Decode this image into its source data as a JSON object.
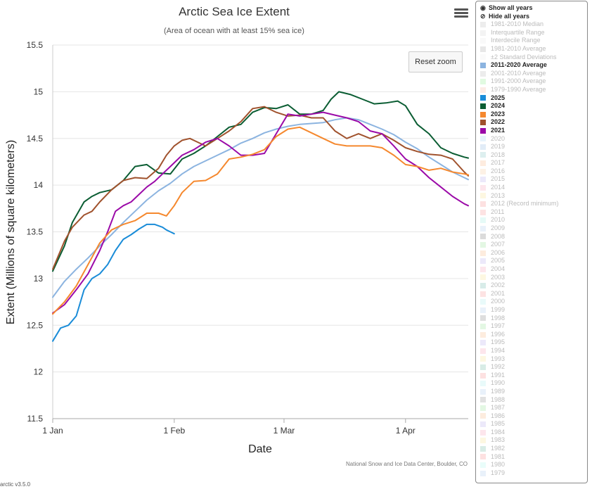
{
  "chart_data": {
    "type": "line",
    "title": "Arctic Sea Ice Extent",
    "subtitle": "(Area of ocean with at least 15% sea ice)",
    "xlabel": "Date",
    "ylabel": "Extent (Millions of square kilometers)",
    "xlim": [
      1,
      107
    ],
    "ylim": [
      11.5,
      15.5
    ],
    "x_ticks": [
      {
        "label": "1 Jan",
        "x": 1
      },
      {
        "label": "1 Feb",
        "x": 32
      },
      {
        "label": "1 Mar",
        "x": 60
      },
      {
        "label": "1 Apr",
        "x": 91
      }
    ],
    "y_ticks": [
      {
        "label": "11.5",
        "v": 11.5
      },
      {
        "label": "12",
        "v": 12
      },
      {
        "label": "12.5",
        "v": 12.5
      },
      {
        "label": "13",
        "v": 13
      },
      {
        "label": "13.5",
        "v": 13.5
      },
      {
        "label": "14",
        "v": 14
      },
      {
        "label": "14.5",
        "v": 14.5
      },
      {
        "label": "15",
        "v": 15
      },
      {
        "label": "15.5",
        "v": 15.5
      }
    ],
    "grid": "horizontal",
    "legend_position": "right",
    "series": [
      {
        "name": "2011-2020 Average",
        "color": "#8cb4e0",
        "x": [
          1,
          4,
          7,
          10,
          13,
          16,
          19,
          22,
          25,
          28,
          31,
          34,
          37,
          40,
          43,
          46,
          49,
          52,
          55,
          58,
          61,
          64,
          67,
          70,
          73,
          76,
          79,
          82,
          85,
          88,
          91,
          94,
          97,
          100,
          103,
          106,
          107
        ],
        "y": [
          12.8,
          12.97,
          13.1,
          13.22,
          13.35,
          13.47,
          13.6,
          13.72,
          13.84,
          13.94,
          14.02,
          14.12,
          14.2,
          14.26,
          14.32,
          14.38,
          14.45,
          14.5,
          14.56,
          14.6,
          14.63,
          14.65,
          14.66,
          14.67,
          14.7,
          14.72,
          14.7,
          14.65,
          14.6,
          14.54,
          14.46,
          14.39,
          14.3,
          14.22,
          14.14,
          14.08,
          14.06
        ]
      },
      {
        "name": "2024",
        "color": "#0b5d33",
        "x": [
          1,
          4,
          6,
          9,
          11,
          13,
          16,
          19,
          22,
          25,
          28,
          31,
          34,
          37,
          40,
          43,
          46,
          49,
          52,
          55,
          58,
          61,
          64,
          67,
          70,
          72,
          74,
          77,
          80,
          83,
          86,
          89,
          91,
          94,
          97,
          100,
          103,
          106,
          107
        ],
        "y": [
          13.08,
          13.35,
          13.6,
          13.82,
          13.88,
          13.92,
          13.95,
          14.05,
          14.2,
          14.22,
          14.13,
          14.12,
          14.28,
          14.34,
          14.42,
          14.52,
          14.62,
          14.65,
          14.78,
          14.83,
          14.82,
          14.86,
          14.76,
          14.76,
          14.8,
          14.92,
          15.0,
          14.97,
          14.92,
          14.87,
          14.88,
          14.9,
          14.85,
          14.65,
          14.55,
          14.4,
          14.34,
          14.3,
          14.29
        ]
      },
      {
        "name": "2022",
        "color": "#a0522d",
        "x": [
          1,
          4,
          6,
          9,
          11,
          13,
          16,
          19,
          22,
          25,
          28,
          30,
          32,
          34,
          36,
          38,
          40,
          43,
          46,
          49,
          52,
          55,
          58,
          61,
          64,
          67,
          70,
          73,
          76,
          79,
          82,
          85,
          88,
          91,
          94,
          97,
          100,
          103,
          106,
          107
        ],
        "y": [
          13.1,
          13.4,
          13.55,
          13.68,
          13.72,
          13.82,
          13.95,
          14.05,
          14.08,
          14.07,
          14.18,
          14.32,
          14.42,
          14.48,
          14.5,
          14.46,
          14.42,
          14.5,
          14.58,
          14.68,
          14.82,
          14.84,
          14.78,
          14.74,
          14.75,
          14.72,
          14.72,
          14.58,
          14.5,
          14.55,
          14.5,
          14.55,
          14.48,
          14.4,
          14.36,
          14.33,
          14.32,
          14.28,
          14.14,
          14.1
        ]
      },
      {
        "name": "2021",
        "color": "#9b0aa8",
        "x": [
          1,
          4,
          7,
          10,
          13,
          15,
          17,
          19,
          21,
          23,
          25,
          27,
          29,
          31,
          34,
          37,
          40,
          43,
          46,
          49,
          52,
          55,
          58,
          61,
          64,
          67,
          70,
          73,
          76,
          79,
          82,
          85,
          88,
          91,
          94,
          97,
          100,
          103,
          106,
          107
        ],
        "y": [
          12.63,
          12.72,
          12.88,
          13.05,
          13.3,
          13.5,
          13.72,
          13.78,
          13.82,
          13.9,
          13.98,
          14.04,
          14.12,
          14.2,
          14.32,
          14.38,
          14.46,
          14.5,
          14.42,
          14.32,
          14.32,
          14.34,
          14.55,
          14.76,
          14.74,
          14.76,
          14.78,
          14.75,
          14.72,
          14.68,
          14.58,
          14.55,
          14.42,
          14.28,
          14.2,
          14.08,
          13.98,
          13.88,
          13.8,
          13.78
        ]
      },
      {
        "name": "2023",
        "color": "#f5882e",
        "x": [
          1,
          4,
          7,
          10,
          13,
          16,
          19,
          22,
          25,
          28,
          30,
          32,
          34,
          37,
          40,
          43,
          46,
          49,
          52,
          55,
          58,
          61,
          64,
          67,
          70,
          73,
          76,
          79,
          82,
          85,
          88,
          91,
          94,
          97,
          100,
          103,
          106,
          107
        ],
        "y": [
          12.62,
          12.75,
          12.92,
          13.15,
          13.38,
          13.52,
          13.58,
          13.62,
          13.7,
          13.7,
          13.67,
          13.78,
          13.92,
          14.04,
          14.05,
          14.12,
          14.28,
          14.3,
          14.33,
          14.38,
          14.52,
          14.6,
          14.62,
          14.56,
          14.5,
          14.44,
          14.42,
          14.42,
          14.42,
          14.4,
          14.32,
          14.22,
          14.2,
          14.16,
          14.18,
          14.14,
          14.12,
          14.11
        ]
      },
      {
        "name": "2025",
        "color": "#1a8cd8",
        "x": [
          1,
          3,
          5,
          7,
          9,
          11,
          13,
          15,
          17,
          19,
          21,
          23,
          25,
          27,
          29,
          30,
          31,
          32
        ],
        "y": [
          12.33,
          12.47,
          12.5,
          12.6,
          12.88,
          13.0,
          13.05,
          13.15,
          13.3,
          13.42,
          13.47,
          13.53,
          13.58,
          13.58,
          13.55,
          13.52,
          13.5,
          13.48
        ]
      }
    ],
    "credit": "National Snow and Ice Data Center, Boulder, CO"
  },
  "toolbar": {
    "reset_label": "Reset zoom",
    "menu_icon": "hamburger-menu-icon"
  },
  "legend": {
    "show_all": "Show all years",
    "show_all_icon": "eye-icon",
    "hide_all": "Hide all years",
    "hide_all_icon": "eye-slash-icon",
    "items": [
      {
        "label": "1981-2010 Median",
        "color": "#cccccc",
        "on": false
      },
      {
        "label": "Interquartile Range",
        "color": "#dddddd",
        "on": false
      },
      {
        "label": "Interdecile Range",
        "color": "#eeeeee",
        "on": false
      },
      {
        "label": "1981-2010 Average",
        "color": "#bbbbbb",
        "on": false
      },
      {
        "label": "±2 Standard Deviations",
        "color": "#f2f2f2",
        "on": false
      },
      {
        "label": "2011-2020 Average",
        "color": "#8cb4e0",
        "on": true
      },
      {
        "label": "2001-2010 Average",
        "color": "#c8c8c8",
        "on": false
      },
      {
        "label": "1991-2000 Average",
        "color": "#aaf0aa",
        "on": false
      },
      {
        "label": "1979-1990 Average",
        "color": "#f7c8b8",
        "on": false
      },
      {
        "label": "2025",
        "color": "#1a8cd8",
        "on": true
      },
      {
        "label": "2024",
        "color": "#0b5d33",
        "on": true
      },
      {
        "label": "2023",
        "color": "#f5882e",
        "on": true
      },
      {
        "label": "2022",
        "color": "#a0522d",
        "on": true
      },
      {
        "label": "2021",
        "color": "#9b0aa8",
        "on": true
      },
      {
        "label": "2020",
        "color": "#b9dff5",
        "on": false
      },
      {
        "label": "2019",
        "color": "#a8c8e8",
        "on": false
      },
      {
        "label": "2018",
        "color": "#9ed2d2",
        "on": false
      },
      {
        "label": "2017",
        "color": "#fbc8a4",
        "on": false
      },
      {
        "label": "2016",
        "color": "#f8d7b4",
        "on": false
      },
      {
        "label": "2015",
        "color": "#c8c0f0",
        "on": false
      },
      {
        "label": "2014",
        "color": "#f8b8c8",
        "on": false
      },
      {
        "label": "2013",
        "color": "#f8e8a8",
        "on": false
      },
      {
        "label": "2012 (Record minimum)",
        "color": "#f8a8a8",
        "on": false
      },
      {
        "label": "2011",
        "color": "#f8b0b0",
        "on": false
      },
      {
        "label": "2010",
        "color": "#b8f0e8",
        "on": false
      },
      {
        "label": "2009",
        "color": "#c0d8f0",
        "on": false
      },
      {
        "label": "2008",
        "color": "#999999",
        "on": false
      },
      {
        "label": "2007",
        "color": "#b0e8b0",
        "on": false
      },
      {
        "label": "2006",
        "color": "#f8c8a0",
        "on": false
      },
      {
        "label": "2005",
        "color": "#c8c0f0",
        "on": false
      },
      {
        "label": "2004",
        "color": "#f8b8c8",
        "on": false
      },
      {
        "label": "2003",
        "color": "#f8e8a8",
        "on": false
      },
      {
        "label": "2002",
        "color": "#90c8c0",
        "on": false
      },
      {
        "label": "2001",
        "color": "#f8b0b0",
        "on": false
      },
      {
        "label": "2000",
        "color": "#c0f0f0",
        "on": false
      },
      {
        "label": "1999",
        "color": "#c0d8f0",
        "on": false
      },
      {
        "label": "1998",
        "color": "#a0a0a0",
        "on": false
      },
      {
        "label": "1997",
        "color": "#b0e8b0",
        "on": false
      },
      {
        "label": "1996",
        "color": "#f8c8a0",
        "on": false
      },
      {
        "label": "1995",
        "color": "#c8c0f0",
        "on": false
      },
      {
        "label": "1994",
        "color": "#f8b8c8",
        "on": false
      },
      {
        "label": "1993",
        "color": "#f8e8a8",
        "on": false
      },
      {
        "label": "1992",
        "color": "#90c8b8",
        "on": false
      },
      {
        "label": "1991",
        "color": "#f8a8a8",
        "on": false
      },
      {
        "label": "1990",
        "color": "#c0f0f0",
        "on": false
      },
      {
        "label": "1989",
        "color": "#c0d8f0",
        "on": false
      },
      {
        "label": "1988",
        "color": "#a8a8a8",
        "on": false
      },
      {
        "label": "1987",
        "color": "#b0e8b0",
        "on": false
      },
      {
        "label": "1986",
        "color": "#f8c8a0",
        "on": false
      },
      {
        "label": "1985",
        "color": "#c8c0f0",
        "on": false
      },
      {
        "label": "1984",
        "color": "#f8b8c8",
        "on": false
      },
      {
        "label": "1983",
        "color": "#f8e8a8",
        "on": false
      },
      {
        "label": "1982",
        "color": "#90c8b8",
        "on": false
      },
      {
        "label": "1981",
        "color": "#f8a8a8",
        "on": false
      },
      {
        "label": "1980",
        "color": "#c0f8f0",
        "on": false
      },
      {
        "label": "1979",
        "color": "#c0d8f0",
        "on": false
      }
    ]
  },
  "footer": {
    "version": "arctic v3.5.0"
  }
}
